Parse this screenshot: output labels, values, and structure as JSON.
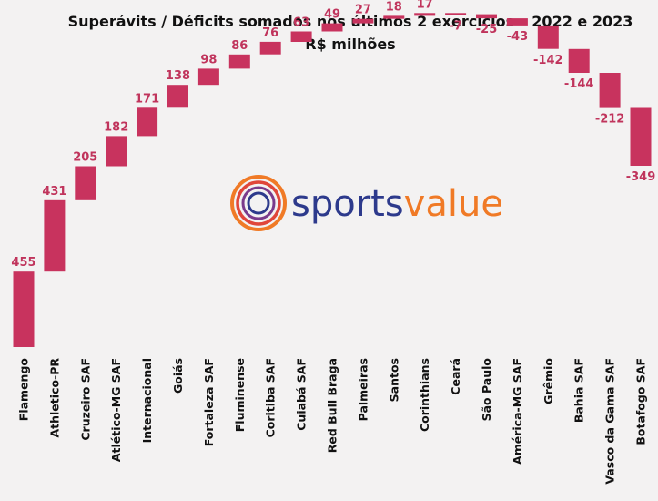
{
  "colors": {
    "bar": "#c8335e",
    "label": "#c0345c",
    "text": "#111111",
    "background": "#f3f2f2",
    "logo_sports": "#2d3a8c",
    "logo_value": "#f07a26"
  },
  "logo": {
    "icon": "sportsvalue-ring-logo",
    "part1": "sports",
    "part2": "value"
  },
  "chart_data": {
    "type": "waterfall",
    "title": "Superávits / Déficits somados nos últimos 2 exercícios – 2022 e 2023",
    "subtitle": "R$ milhões",
    "xlabel": "",
    "ylabel": "",
    "categories": [
      "Flamengo",
      "Athletico-PR",
      "Cruzeiro SAF",
      "Atlético-MG SAF",
      "Internacional",
      "Goiás",
      "Fortaleza SAF",
      "Fluminense",
      "Coritiba SAF",
      "Cuiabá SAF",
      "Red Bull Braga",
      "Palmeiras",
      "Santos",
      "Corinthians",
      "Ceará",
      "São Paulo",
      "América-MG SAF",
      "Grêmio",
      "Bahia SAF",
      "Vasco da Gama SAF",
      "Botafogo SAF"
    ],
    "values": [
      455,
      431,
      205,
      182,
      171,
      138,
      98,
      86,
      76,
      63,
      49,
      27,
      18,
      17,
      -7,
      -25,
      -43,
      -142,
      -144,
      -212,
      -349
    ],
    "labels": [
      "455",
      "431",
      "205",
      "182",
      "171",
      "138",
      "98",
      "86",
      "76",
      "63",
      "49",
      "27",
      "18",
      "17",
      "-7",
      "-25",
      "-43",
      "-142",
      "-144",
      "-212",
      "-349"
    ],
    "grid": false,
    "legend": "none"
  }
}
